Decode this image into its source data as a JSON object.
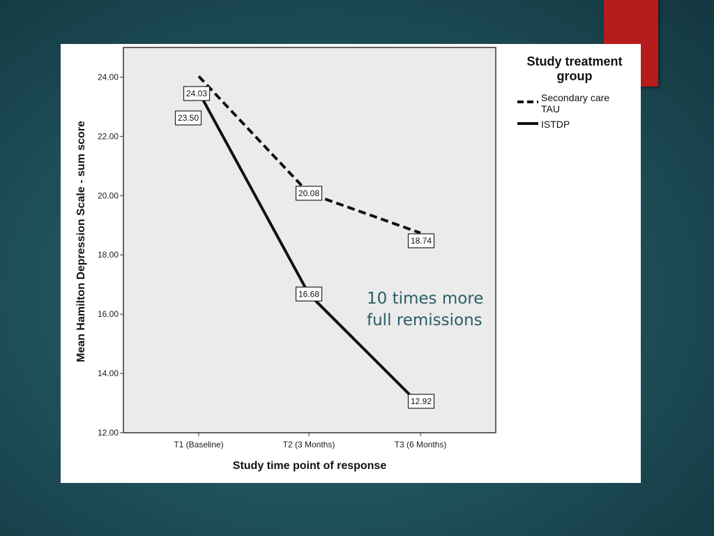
{
  "colors": {
    "accent": "#b71c1c",
    "plot_bg": "#ebebeb",
    "annotation": "#2a5f66",
    "line": "#111111"
  },
  "chart_data": {
    "type": "line",
    "categories": [
      "T1 (Baseline)",
      "T2 (3 Months)",
      "T3 (6 Months)"
    ],
    "series": [
      {
        "name": "Secondary care TAU",
        "legend_lines": [
          "Secondary care",
          "TAU"
        ],
        "style": "dashed",
        "values": [
          24.03,
          20.08,
          18.74
        ],
        "labels": [
          "24.03",
          "20.08",
          "18.74"
        ]
      },
      {
        "name": "ISTDP",
        "legend_lines": [
          "ISTDP"
        ],
        "style": "solid",
        "values": [
          23.5,
          16.68,
          12.92
        ],
        "labels": [
          "23.50",
          "16.68",
          "12.92"
        ]
      }
    ],
    "xlabel": "Study time point of response",
    "ylabel": "Mean Hamilton Depression Scale - sum score",
    "ylim": [
      12.0,
      25.0
    ],
    "yticks": [
      12,
      14,
      16,
      18,
      20,
      22,
      24
    ],
    "ytick_labels": [
      "12.00",
      "14.00",
      "16.00",
      "18.00",
      "20.00",
      "22.00",
      "24.00"
    ],
    "legend_title": [
      "Study treatment",
      "group"
    ],
    "legend_position": "right",
    "grid": false,
    "annotation": [
      "10 times more",
      "full remissions"
    ]
  }
}
